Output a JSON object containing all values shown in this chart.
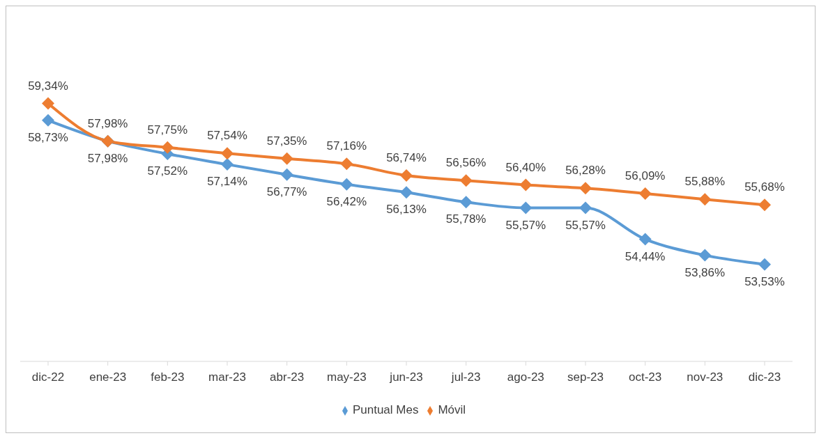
{
  "chart_data": {
    "type": "line",
    "categories": [
      "dic-22",
      "ene-23",
      "feb-23",
      "mar-23",
      "abr-23",
      "may-23",
      "jun-23",
      "jul-23",
      "ago-23",
      "sep-23",
      "oct-23",
      "nov-23",
      "dic-23"
    ],
    "series": [
      {
        "name": "Puntual Mes",
        "color": "#5b9bd5",
        "values": [
          58.73,
          57.98,
          57.52,
          57.14,
          56.77,
          56.42,
          56.13,
          55.78,
          55.57,
          55.57,
          54.44,
          53.86,
          53.53
        ],
        "value_labels": [
          "58,73%",
          "57,98%",
          "57,52%",
          "57,14%",
          "56,77%",
          "56,42%",
          "56,13%",
          "55,78%",
          "55,57%",
          "55,57%",
          "54,44%",
          "53,86%",
          "53,53%"
        ]
      },
      {
        "name": "Móvil",
        "color": "#ed7d31",
        "values": [
          59.34,
          57.98,
          57.75,
          57.54,
          57.35,
          57.16,
          56.74,
          56.56,
          56.4,
          56.28,
          56.09,
          55.88,
          55.68
        ],
        "value_labels": [
          "59,34%",
          "57,98%",
          "57,75%",
          "57,54%",
          "57,35%",
          "57,16%",
          "56,74%",
          "56,56%",
          "56,40%",
          "56,28%",
          "56,09%",
          "55,88%",
          "55,68%"
        ]
      }
    ],
    "tick_labels": "x",
    "grid": false,
    "legend": "bottom",
    "marker": "diamond",
    "line_style": "solid"
  }
}
